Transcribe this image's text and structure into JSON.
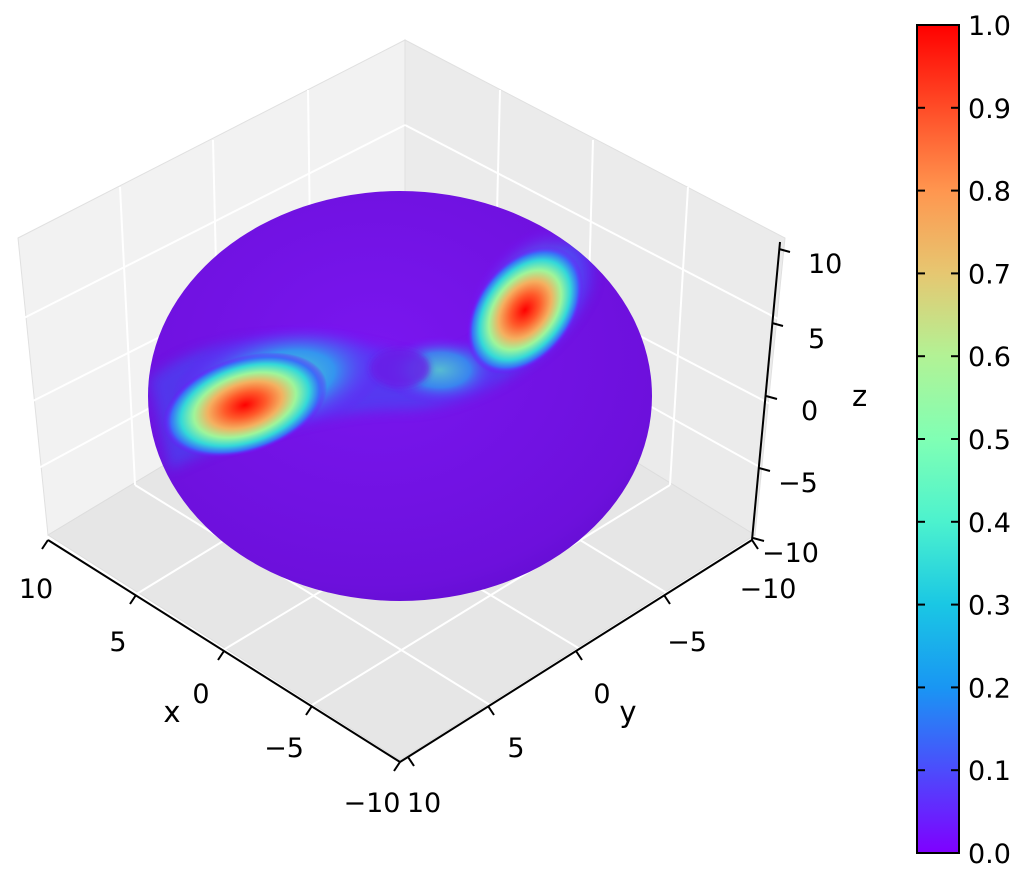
{
  "chart_data": [
    {
      "type": "surface3d",
      "surface": "sphere",
      "radius": 10,
      "colormap": "rainbow",
      "color_value_min": 0.0,
      "color_value_max": 1.0,
      "xlabel": "x",
      "ylabel": "y",
      "zlabel": "z",
      "xlim": [
        -10,
        10
      ],
      "ylim": [
        -10,
        10
      ],
      "zlim": [
        -10,
        10
      ],
      "x_ticks": [
        "−10",
        "−5",
        "0",
        "5",
        "10"
      ],
      "y_ticks": [
        "−10",
        "−5",
        "0",
        "5",
        "10"
      ],
      "z_ticks": [
        "−10",
        "−5",
        "0",
        "5",
        "10"
      ],
      "grid": true,
      "hotspots": [
        {
          "name": "left-peak",
          "value": 1.0
        },
        {
          "name": "right-peak",
          "value": 1.0
        }
      ]
    },
    {
      "type": "colorbar",
      "colormap": "rainbow",
      "range": [
        0.0,
        1.0
      ],
      "ticks": [
        "0.0",
        "0.1",
        "0.2",
        "0.3",
        "0.4",
        "0.5",
        "0.6",
        "0.7",
        "0.8",
        "0.9",
        "1.0"
      ]
    }
  ]
}
